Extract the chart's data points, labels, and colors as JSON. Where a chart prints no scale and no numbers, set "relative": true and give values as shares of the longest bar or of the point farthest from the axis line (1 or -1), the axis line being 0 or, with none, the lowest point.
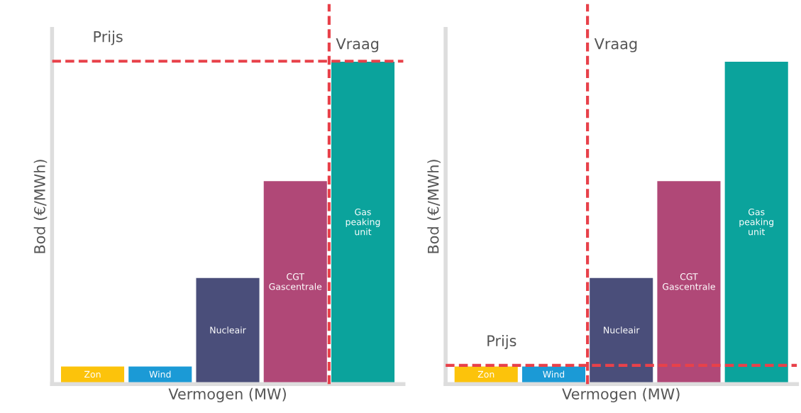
{
  "chart_data": [
    {
      "type": "bar",
      "relative": true,
      "xlabel": "Vermogen (MW)",
      "ylabel": "Bod (€/MWh)",
      "categories": [
        "Zon",
        "Wind",
        "Nucleair",
        "CGT\nGascentrale",
        "Gas\npeaking\nunit"
      ],
      "values": [
        0.056,
        0.056,
        0.33,
        0.63,
        1.0
      ],
      "colors": [
        "#fcc30b",
        "#1b9ad6",
        "#4a4e7a",
        "#b04877",
        "#0ba39c"
      ],
      "ref_lines": [
        {
          "axis": "y",
          "value": 1.0,
          "label": "Prijs",
          "color": "#e8414a",
          "line_style": "dashed"
        },
        {
          "axis": "x",
          "value": "Gas\npeaking\nunit",
          "label": "Vraag",
          "color": "#e8414a",
          "line_style": "dashed"
        }
      ]
    },
    {
      "type": "bar",
      "relative": true,
      "xlabel": "Vermogen (MW)",
      "ylabel": "Bod (€/MWh)",
      "categories": [
        "Zon",
        "Wind",
        "Nucleair",
        "CGT\nGascentrale",
        "Gas\npeaking\nunit"
      ],
      "values": [
        0.056,
        0.056,
        0.33,
        0.63,
        1.0
      ],
      "colors": [
        "#fcc30b",
        "#1b9ad6",
        "#4a4e7a",
        "#b04877",
        "#0ba39c"
      ],
      "ref_lines": [
        {
          "axis": "y",
          "value": 0.058,
          "label": "Prijs",
          "color": "#e8414a",
          "line_style": "dashed"
        },
        {
          "axis": "x",
          "value": "Nucleair",
          "label": "Vraag",
          "color": "#e8414a",
          "line_style": "dashed"
        }
      ]
    }
  ]
}
